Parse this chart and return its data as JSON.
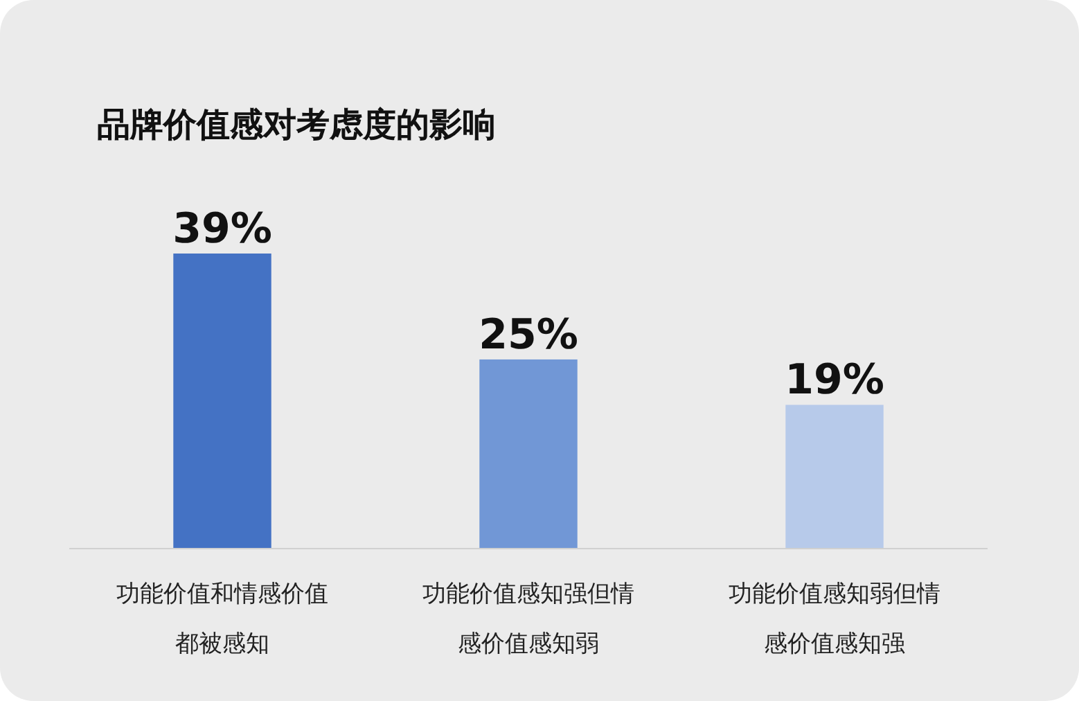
{
  "chart_data": {
    "type": "bar",
    "title": "品牌价值感对考虑度的影响",
    "categories": [
      "功能价值和情感价值都被感知",
      "功能价值感知强但情感价值感知弱",
      "功能价值感知弱但情感价值感知强"
    ],
    "values": [
      39,
      25,
      19
    ],
    "colors": [
      "#4472c4",
      "#7197d6",
      "#b7caea"
    ],
    "value_labels": [
      "39%",
      "25%",
      "19%"
    ]
  }
}
